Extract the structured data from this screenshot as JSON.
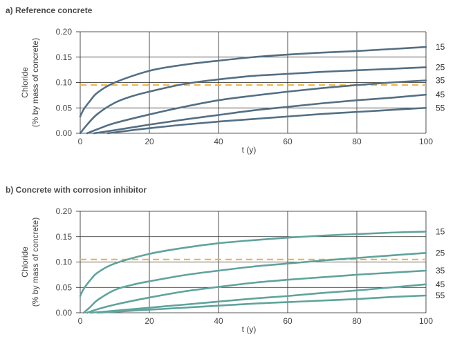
{
  "chart_data": [
    {
      "type": "line",
      "title": "a) Reference concrete",
      "xlabel": "t (y)",
      "ylabel": [
        "Chloride",
        "(% by mass of concrete)"
      ],
      "xlim": [
        0,
        100
      ],
      "ylim": [
        0,
        0.2
      ],
      "x_ticks": [
        0,
        20,
        40,
        60,
        80,
        100
      ],
      "y_ticks": [
        "0.00",
        "0.05",
        "0.10",
        "0.15",
        "0.20"
      ],
      "grid": true,
      "threshold": 0.095,
      "line_color": "#536f84",
      "threshold_color": "#f0b43c",
      "series": [
        {
          "name": "15",
          "x": [
            0,
            1,
            3,
            5,
            10,
            20,
            30,
            40,
            50,
            60,
            70,
            80,
            90,
            100
          ],
          "values": [
            0.033,
            0.047,
            0.065,
            0.08,
            0.1,
            0.123,
            0.135,
            0.143,
            0.15,
            0.155,
            0.159,
            0.162,
            0.166,
            0.17
          ]
        },
        {
          "name": "25",
          "x": [
            0,
            2,
            5,
            10,
            15,
            20,
            30,
            40,
            50,
            60,
            70,
            80,
            90,
            100
          ],
          "values": [
            0.0,
            0.017,
            0.038,
            0.06,
            0.073,
            0.082,
            0.097,
            0.106,
            0.113,
            0.117,
            0.121,
            0.124,
            0.127,
            0.13
          ]
        },
        {
          "name": "35",
          "x": [
            2,
            5,
            10,
            20,
            30,
            40,
            50,
            60,
            70,
            80,
            90,
            100
          ],
          "values": [
            0.0,
            0.008,
            0.02,
            0.037,
            0.052,
            0.065,
            0.074,
            0.082,
            0.089,
            0.095,
            0.1,
            0.104
          ]
        },
        {
          "name": "45",
          "x": [
            4,
            10,
            20,
            30,
            40,
            50,
            60,
            70,
            80,
            90,
            100
          ],
          "values": [
            0.0,
            0.006,
            0.017,
            0.027,
            0.036,
            0.045,
            0.052,
            0.059,
            0.065,
            0.07,
            0.076
          ]
        },
        {
          "name": "55",
          "x": [
            8,
            15,
            20,
            30,
            40,
            50,
            60,
            70,
            80,
            90,
            100
          ],
          "values": [
            0.0,
            0.006,
            0.01,
            0.017,
            0.023,
            0.028,
            0.033,
            0.038,
            0.042,
            0.046,
            0.05
          ]
        }
      ]
    },
    {
      "type": "line",
      "title": "b) Concrete with corrosion inhibitor",
      "xlabel": "t (y)",
      "ylabel": [
        "Chloride",
        "(% by mass of concrete)"
      ],
      "xlim": [
        0,
        100
      ],
      "ylim": [
        0,
        0.2
      ],
      "x_ticks": [
        0,
        20,
        40,
        60,
        80,
        100
      ],
      "y_ticks": [
        "0.00",
        "0.05",
        "0.10",
        "0.15",
        "0.20"
      ],
      "grid": true,
      "threshold": 0.105,
      "line_color": "#5fa39c",
      "threshold_color": "#f0b43c",
      "series": [
        {
          "name": "15",
          "x": [
            0,
            1,
            3,
            5,
            10,
            20,
            30,
            40,
            50,
            60,
            70,
            80,
            90,
            100
          ],
          "values": [
            0.033,
            0.047,
            0.065,
            0.079,
            0.097,
            0.116,
            0.128,
            0.137,
            0.143,
            0.148,
            0.152,
            0.155,
            0.158,
            0.16
          ]
        },
        {
          "name": "25",
          "x": [
            1,
            3,
            5,
            10,
            15,
            20,
            30,
            40,
            50,
            60,
            70,
            80,
            90,
            100
          ],
          "values": [
            0.0,
            0.012,
            0.025,
            0.045,
            0.055,
            0.062,
            0.074,
            0.083,
            0.091,
            0.097,
            0.103,
            0.108,
            0.113,
            0.118
          ]
        },
        {
          "name": "35",
          "x": [
            2,
            5,
            10,
            20,
            30,
            40,
            50,
            60,
            70,
            80,
            90,
            100
          ],
          "values": [
            0.0,
            0.007,
            0.016,
            0.03,
            0.042,
            0.051,
            0.059,
            0.065,
            0.07,
            0.075,
            0.079,
            0.083
          ]
        },
        {
          "name": "45",
          "x": [
            3,
            10,
            20,
            30,
            40,
            50,
            60,
            70,
            80,
            90,
            100
          ],
          "values": [
            0.0,
            0.004,
            0.01,
            0.016,
            0.022,
            0.028,
            0.033,
            0.039,
            0.044,
            0.05,
            0.056
          ]
        },
        {
          "name": "55",
          "x": [
            5,
            10,
            20,
            30,
            40,
            50,
            60,
            70,
            80,
            90,
            100
          ],
          "values": [
            0.0,
            0.002,
            0.006,
            0.01,
            0.014,
            0.018,
            0.021,
            0.024,
            0.027,
            0.031,
            0.034
          ]
        }
      ]
    }
  ]
}
